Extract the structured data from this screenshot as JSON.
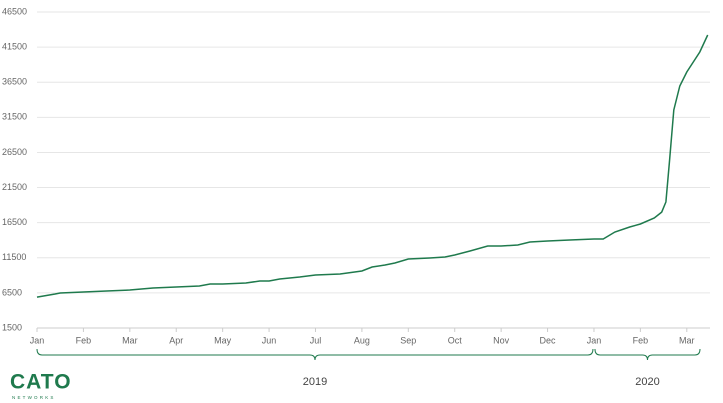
{
  "chart_data": {
    "type": "line",
    "x": [
      0,
      0.39,
      0.5,
      1,
      1.5,
      2,
      2.5,
      3,
      3.5,
      3.73,
      4,
      4.5,
      4.8,
      5,
      5.23,
      5.66,
      6,
      6.53,
      7,
      7.22,
      7.5,
      7.71,
      8,
      8.46,
      8.79,
      9,
      9.33,
      9.71,
      10,
      10.36,
      10.62,
      11,
      11.48,
      12,
      12.2,
      12.45,
      12.77,
      13,
      13.3,
      13.46,
      13.55,
      13.63,
      13.72,
      13.85,
      14,
      14.28,
      14.45
    ],
    "series": [
      {
        "color": "#1f7a4d",
        "values": [
          5900,
          6340,
          6480,
          6630,
          6770,
          6910,
          7200,
          7340,
          7480,
          7770,
          7770,
          7910,
          8190,
          8190,
          8480,
          8760,
          9050,
          9190,
          9620,
          10190,
          10470,
          10760,
          11330,
          11470,
          11610,
          11900,
          12460,
          13180,
          13180,
          13320,
          13750,
          13890,
          14030,
          14170,
          14170,
          15170,
          15880,
          16310,
          17160,
          18000,
          19440,
          25420,
          32540,
          35960,
          37950,
          40800,
          43220
        ]
      }
    ],
    "xlim": [
      0,
      14.5
    ],
    "xticks": [
      {
        "value": 0,
        "label": "Jan"
      },
      {
        "value": 1,
        "label": "Feb"
      },
      {
        "value": 2,
        "label": "Mar"
      },
      {
        "value": 3,
        "label": "Apr"
      },
      {
        "value": 4,
        "label": "May"
      },
      {
        "value": 5,
        "label": "Jun"
      },
      {
        "value": 6,
        "label": "Jul"
      },
      {
        "value": 7,
        "label": "Aug"
      },
      {
        "value": 8,
        "label": "Sep"
      },
      {
        "value": 9,
        "label": "Oct"
      },
      {
        "value": 10,
        "label": "Nov"
      },
      {
        "value": 11,
        "label": "Dec"
      },
      {
        "value": 12,
        "label": "Jan"
      },
      {
        "value": 13,
        "label": "Feb"
      },
      {
        "value": 14,
        "label": "Mar"
      }
    ],
    "ylim": [
      1500,
      46500
    ],
    "yticks": [
      1500,
      6500,
      11500,
      16500,
      21500,
      26500,
      31500,
      36500,
      41500,
      46500
    ],
    "grid": true,
    "year_labels": [
      "2019",
      "2020"
    ]
  },
  "logo": {
    "name": "CATO",
    "tagline": "NETWORKS"
  }
}
